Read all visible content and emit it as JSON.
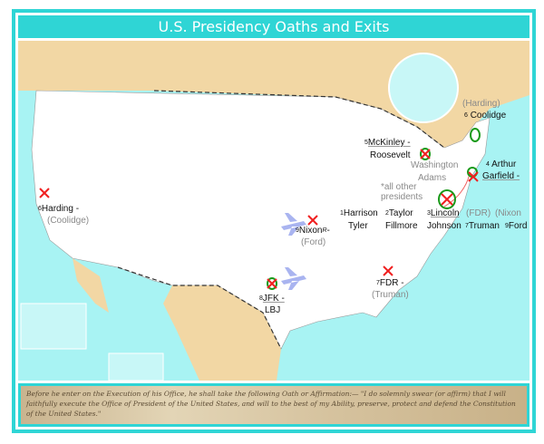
{
  "title": "U.S. Presidency Oaths and Exits",
  "colors": {
    "frame": "#2fd5d5",
    "ocean": "#a8f3f3",
    "land": "#ffffff",
    "foreign_land": "#f2d7a4",
    "death_marker": "#f02020",
    "oath_marker": "#1a9a1a",
    "plane": "#a9b4f0"
  },
  "labels": {
    "harding": {
      "num": "6",
      "name": "Harding -",
      "successor": "(Coolidge)"
    },
    "mckinley": {
      "num": "5",
      "name": "McKinley -",
      "successor": "Roosevelt"
    },
    "coolidge": {
      "prior": "(Harding)",
      "num": "6",
      "name": "Coolidge"
    },
    "washington": "Washington",
    "adams": "Adams",
    "arthur": {
      "num": "4",
      "name": "Arthur",
      "prior": "Garfield -"
    },
    "all_others": "*all other presidents",
    "harrison": {
      "num": "1",
      "name": "Harrison",
      "successor": "Tyler"
    },
    "taylor": {
      "num": "2",
      "name": "Taylor",
      "successor": "Fillmore"
    },
    "lincoln": {
      "num": "3",
      "name": "Lincoln",
      "successor": "Johnson"
    },
    "truman": {
      "prior": "(FDR)",
      "num": "7",
      "name": "Truman"
    },
    "ford": {
      "prior": "(Nixon",
      "num": "9",
      "name": "Ford"
    },
    "nixon": {
      "num": "9",
      "name": "Nixon",
      "mark": "R",
      "dash": "-",
      "successor": "(Ford)"
    },
    "jfk": {
      "num": "8",
      "name": "JFK -",
      "successor": "LBJ"
    },
    "fdr": {
      "num": "7",
      "name": "FDR -",
      "successor": "(Truman)"
    }
  },
  "oath_text": "Before he enter on the Execution of his Office, he shall take the following Oath or Affirmation:— \"I do solemnly swear (or affirm) that I will faithfully execute the Office of President of the United States, and will to the best of my Ability, preserve, protect and defend the Constitution of the United States.\""
}
